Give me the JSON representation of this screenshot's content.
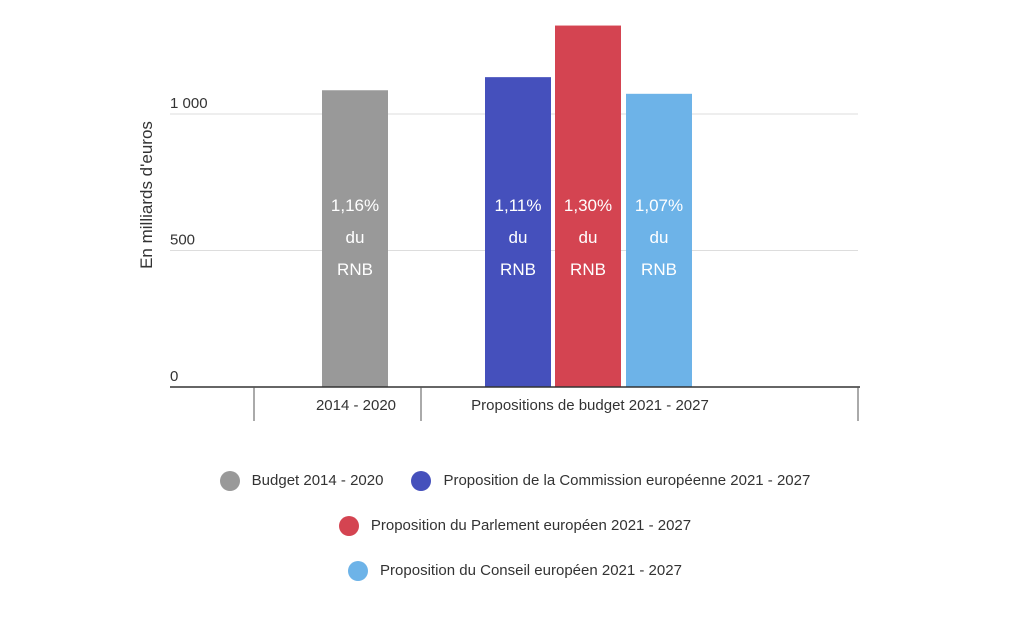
{
  "chart_data": {
    "type": "bar",
    "ylabel": "En milliards d'euros",
    "ylim": [
      0,
      1300
    ],
    "yticks": [
      {
        "value": 0,
        "label": "0"
      },
      {
        "value": 500,
        "label": "500"
      },
      {
        "value": 1000,
        "label": "1 000"
      }
    ],
    "groups": [
      {
        "label": "2014 - 2020",
        "bars": [
          0
        ]
      },
      {
        "label": "Propositions de budget 2021 - 2027",
        "bars": [
          1,
          2,
          3
        ]
      }
    ],
    "series": [
      {
        "name": "Budget 2014 - 2020",
        "value": 1087,
        "color": "#999999",
        "label": [
          "1,16%",
          "du",
          "RNB"
        ]
      },
      {
        "name": "Proposition de la Commission européenne 2021 - 2027",
        "value": 1135,
        "color": "#4550bc",
        "label": [
          "1,11%",
          "du",
          "RNB"
        ]
      },
      {
        "name": "Proposition du Parlement européen 2021 - 2027",
        "value": 1324,
        "color": "#d44451",
        "label": [
          "1,30%",
          "du",
          "RNB"
        ]
      },
      {
        "name": "Proposition du Conseil européen 2021 - 2027",
        "value": 1074,
        "color": "#6db3e8",
        "label": [
          "1,07%",
          "du",
          "RNB"
        ]
      }
    ],
    "grid": true,
    "legend_position": "bottom"
  }
}
